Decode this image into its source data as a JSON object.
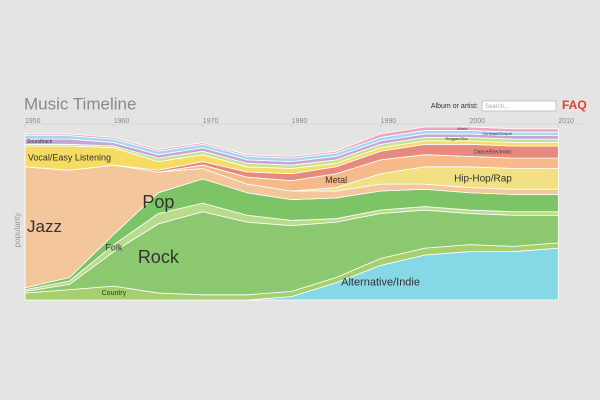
{
  "header": {
    "search_label": "Album or artist:",
    "search_placeholder": "Search...",
    "faq": "FAQ"
  },
  "chart_data": {
    "type": "streamgraph",
    "title": "Music Timeline",
    "y_label": "popularity",
    "x": [
      1950,
      1955,
      1960,
      1965,
      1970,
      1975,
      1980,
      1985,
      1990,
      1995,
      2000,
      2005,
      2010
    ],
    "xlim": [
      1950,
      2013
    ],
    "xticks": [
      1950,
      1960,
      1970,
      1980,
      1990,
      2000,
      2010
    ],
    "ylim": [
      0,
      100
    ],
    "series": [
      {
        "name": "Alternative/Indie",
        "color": "#86d8e6",
        "values": [
          0,
          0,
          0,
          0,
          0,
          0,
          2,
          10,
          20,
          26,
          28,
          28,
          30
        ]
      },
      {
        "name": "Country",
        "color": "#a6cf6e",
        "values": [
          4,
          6,
          8,
          4,
          3,
          3,
          3,
          3,
          4,
          4,
          4,
          3,
          3
        ]
      },
      {
        "name": "Rock",
        "color": "#8cc870",
        "values": [
          1,
          3,
          20,
          40,
          48,
          42,
          38,
          32,
          26,
          22,
          18,
          18,
          16
        ]
      },
      {
        "name": "Folk",
        "color": "#b9dc8c",
        "values": [
          1,
          2,
          4,
          6,
          5,
          4,
          3,
          2,
          2,
          2,
          2,
          2,
          2
        ]
      },
      {
        "name": "Pop",
        "color": "#7cc466",
        "values": [
          1,
          2,
          6,
          12,
          14,
          13,
          12,
          12,
          11,
          10,
          10,
          10,
          10
        ]
      },
      {
        "name": "Jazz",
        "color": "#f3c69c",
        "values": [
          70,
          62,
          40,
          12,
          6,
          5,
          5,
          4,
          4,
          3,
          3,
          3,
          3
        ]
      },
      {
        "name": "Hip-Hop/Rap",
        "color": "#f1e084",
        "values": [
          0,
          0,
          0,
          0,
          0,
          0,
          0,
          2,
          6,
          10,
          12,
          12,
          12
        ]
      },
      {
        "name": "Metal",
        "color": "#f6b98a",
        "values": [
          0,
          0,
          0,
          0,
          2,
          4,
          6,
          8,
          8,
          7,
          6,
          6,
          6
        ]
      },
      {
        "name": "Dance/Electronic",
        "color": "#e68a80",
        "values": [
          0,
          0,
          0,
          1,
          2,
          3,
          4,
          4,
          5,
          6,
          7,
          7,
          7
        ]
      },
      {
        "name": "Vocal/Easy Listening",
        "color": "#f6dc62",
        "values": [
          12,
          14,
          10,
          5,
          4,
          3,
          3,
          2,
          2,
          2,
          2,
          2,
          2
        ]
      },
      {
        "name": "Reggae/Ska",
        "color": "#c9e194",
        "values": [
          1,
          1,
          1,
          2,
          2,
          2,
          2,
          2,
          2,
          2,
          2,
          2,
          2
        ]
      },
      {
        "name": "Soundtrack",
        "color": "#c6a6d6",
        "values": [
          3,
          3,
          2,
          2,
          2,
          2,
          2,
          2,
          2,
          2,
          2,
          2,
          2
        ]
      },
      {
        "name": "Christian/Gospel",
        "color": "#a4d8f0",
        "values": [
          2,
          2,
          2,
          2,
          2,
          2,
          2,
          2,
          2,
          2,
          2,
          2,
          2
        ]
      },
      {
        "name": "World",
        "color": "#f0a4c2",
        "values": [
          1,
          1,
          1,
          1,
          1,
          1,
          1,
          1,
          2,
          2,
          2,
          2,
          2
        ]
      }
    ]
  }
}
